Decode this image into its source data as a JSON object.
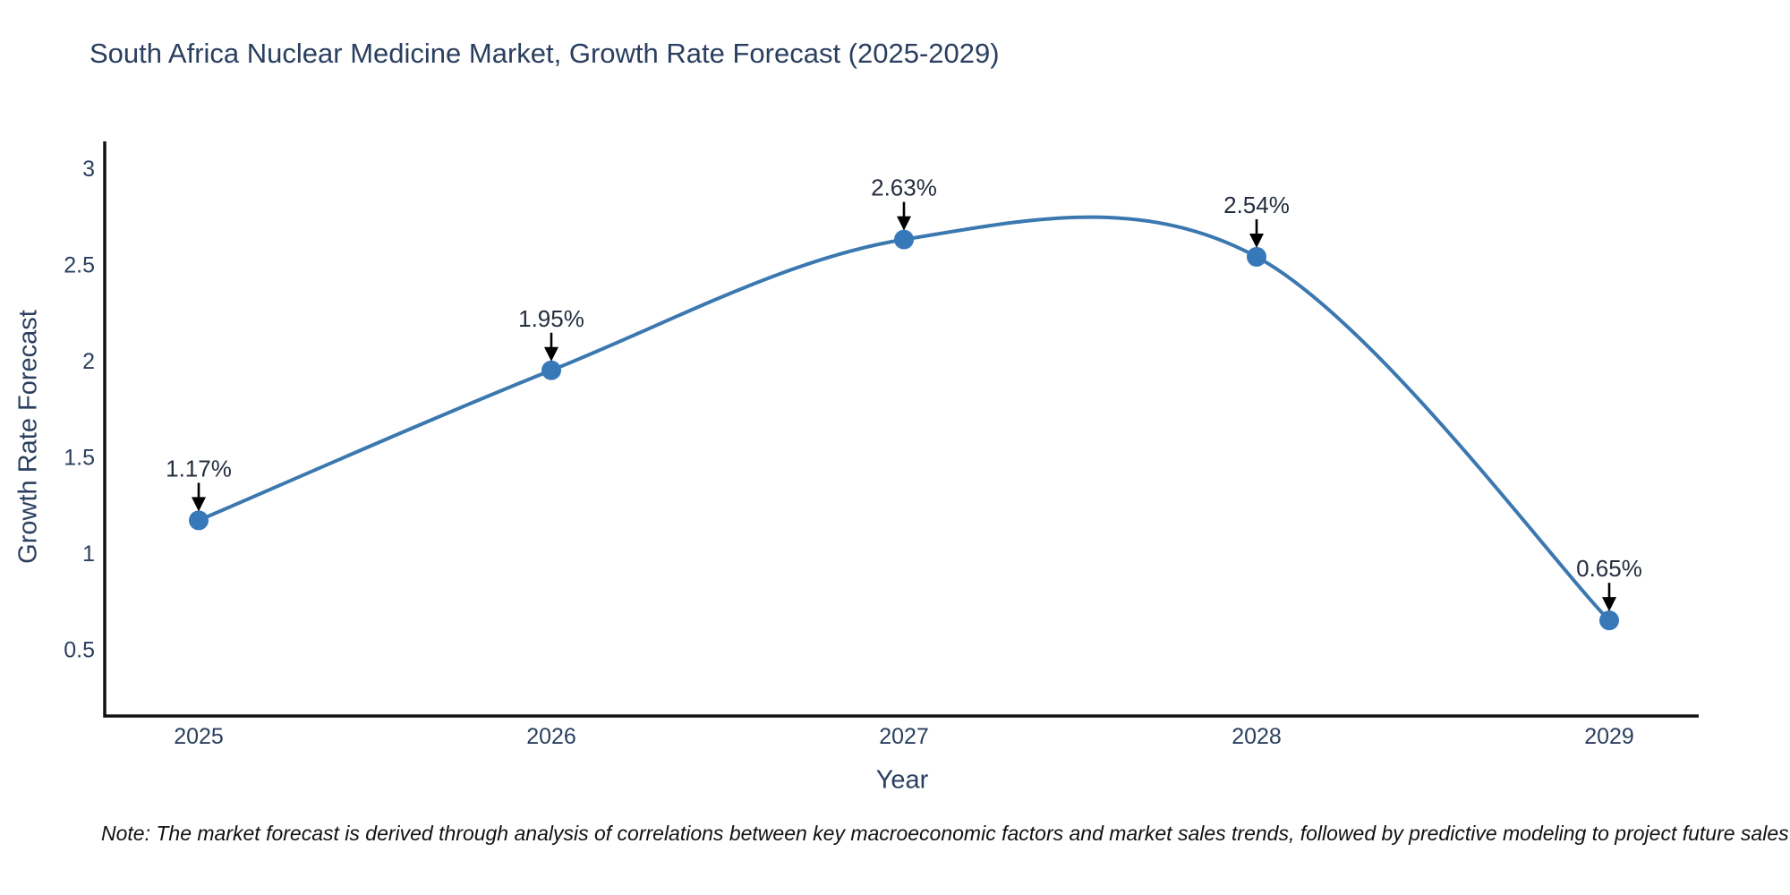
{
  "title": "South Africa Nuclear Medicine Market, Growth Rate Forecast (2025-2029)",
  "note": "Note: The market forecast is derived through analysis of correlations between key macroeconomic factors and market sales trends, followed by predictive modeling to project future sales",
  "chart_data": {
    "type": "line",
    "line_shape": "spline",
    "title": "South Africa Nuclear Medicine Market, Growth Rate Forecast (2025-2029)",
    "xlabel": "Year",
    "ylabel": "Growth Rate Forecast",
    "categories": [
      "2025",
      "2026",
      "2027",
      "2028",
      "2029"
    ],
    "values": [
      1.17,
      1.95,
      2.63,
      2.54,
      0.65
    ],
    "point_labels": [
      "1.17%",
      "1.95%",
      "2.63%",
      "2.54%",
      "0.65%"
    ],
    "yticks": [
      0.5,
      1,
      1.5,
      2,
      2.5,
      3
    ],
    "ylim": [
      0.153,
      3.14
    ],
    "grid": false,
    "legend": "none",
    "markers": true,
    "annotation_arrows": true,
    "colors": {
      "line": "#3b78b0",
      "marker": "#3779b8",
      "axis": "#111111",
      "tick_text": "#2a3f5f",
      "annotation_text": "#252e3f",
      "arrow": "#000000",
      "background": "#ffffff"
    }
  }
}
